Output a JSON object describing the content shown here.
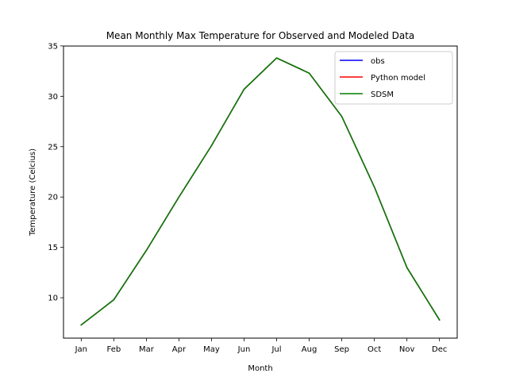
{
  "chart_data": {
    "type": "line",
    "title": "Mean Monthly Max Temperature for Observed and Modeled Data",
    "xlabel": "Month",
    "ylabel": "Temperature (Celcius)",
    "categories": [
      "Jan",
      "Feb",
      "Mar",
      "Apr",
      "May",
      "Jun",
      "Jul",
      "Aug",
      "Sep",
      "Oct",
      "Nov",
      "Dec"
    ],
    "ylim": [
      5.99,
      34.99
    ],
    "yticks": [
      10,
      15,
      20,
      25,
      30,
      35
    ],
    "grid": false,
    "legend_position": "top-right",
    "series": [
      {
        "name": "obs",
        "color": "#0000ff",
        "values": [
          7.3,
          9.8,
          14.7,
          20.0,
          25.1,
          30.7,
          33.8,
          32.3,
          28.0,
          21.0,
          13.0,
          7.8
        ]
      },
      {
        "name": "Python model",
        "color": "#ff0000",
        "values": [
          7.3,
          9.8,
          14.7,
          20.0,
          25.1,
          30.7,
          33.8,
          32.3,
          28.0,
          21.0,
          13.0,
          7.8
        ]
      },
      {
        "name": "SDSM",
        "color": "#008000",
        "values": [
          7.3,
          9.8,
          14.7,
          20.0,
          25.1,
          30.7,
          33.8,
          32.3,
          28.0,
          21.0,
          13.0,
          7.8
        ]
      }
    ]
  }
}
